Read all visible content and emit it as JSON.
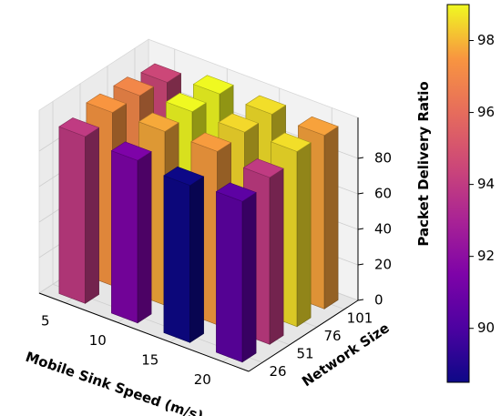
{
  "chart_data": {
    "type": "bar3d",
    "xlabel": "Mobile Sink Speed (m/s)",
    "ylabel": "Network Size",
    "zlabel": "Packet Delivery Ratio",
    "x_categories": [
      "5",
      "10",
      "15",
      "20"
    ],
    "y_categories": [
      "26",
      "51",
      "76",
      "101"
    ],
    "z_ticks": [
      "0",
      "20",
      "40",
      "60",
      "80"
    ],
    "zlim": [
      0,
      100
    ],
    "values": {
      "26": [
        94.0,
        91.5,
        88.5,
        90.5
      ],
      "51": [
        97.5,
        97.8,
        97.6,
        94.0
      ],
      "76": [
        97.0,
        99.0,
        98.5,
        98.6
      ],
      "101": [
        94.5,
        99.0,
        98.6,
        97.7
      ]
    },
    "colorbar": {
      "colormap": "plasma",
      "range": [
        88.5,
        99.0
      ],
      "ticks": [
        "90",
        "92",
        "94",
        "96",
        "98"
      ]
    },
    "grid": true
  }
}
